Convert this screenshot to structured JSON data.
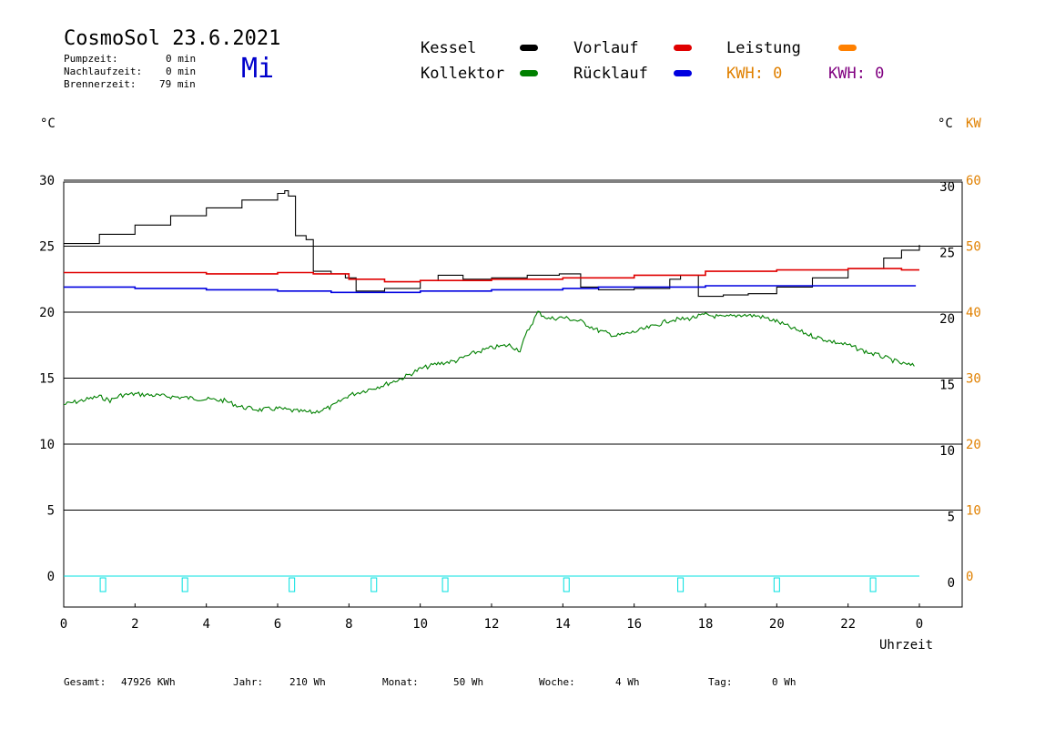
{
  "header": {
    "title": "CosmoSol 23.6.2021",
    "day": "Mi",
    "stats": [
      {
        "label": "Pumpzeit:",
        "value": "0 min"
      },
      {
        "label": "Nachlaufzeit:",
        "value": "0 min"
      },
      {
        "label": "Brennerzeit:",
        "value": "79 min"
      }
    ]
  },
  "legend": {
    "kessel": "Kessel",
    "kollektor": "Kollektor",
    "vorlauf": "Vorlauf",
    "ruecklauf": "Rücklauf",
    "leistung": "Leistung",
    "kwh1": "KWH: 0",
    "kwh2": "KWH: 0"
  },
  "units": {
    "left": "°C",
    "right_c": "°C",
    "right_kw": "KW",
    "xlabel": "Uhrzeit"
  },
  "footer": {
    "gesamt_label": "Gesamt:",
    "gesamt_value": "47926 KWh",
    "jahr_label": "Jahr:",
    "jahr_value": "210 Wh",
    "monat_label": "Monat:",
    "monat_value": "50 Wh",
    "woche_label": "Woche:",
    "woche_value": "4 Wh",
    "tag_label": "Tag:",
    "tag_value": "0 Wh"
  },
  "colors": {
    "kessel": "#000000",
    "kollektor": "#008000",
    "vorlauf": "#e00000",
    "ruecklauf": "#0000e0",
    "leistung": "#ff8000",
    "kwh1": "#e08000",
    "kwh2": "#800080",
    "pump": "#00e0e0",
    "kw_axis": "#e08000"
  },
  "chart_data": {
    "type": "line",
    "xlabel": "Uhrzeit",
    "ylabel": "°C",
    "xlim": [
      0,
      24
    ],
    "ylim": [
      -2,
      31
    ],
    "y2lim": [
      -4,
      62
    ],
    "x_tick_labels": [
      "0",
      "2",
      "4",
      "6",
      "8",
      "10",
      "12",
      "14",
      "16",
      "18",
      "20",
      "22",
      "0"
    ],
    "y_ticks_left": [
      0,
      5,
      10,
      15,
      20,
      25,
      30
    ],
    "y_ticks_right": [
      0,
      5,
      10,
      15,
      20,
      25,
      30
    ],
    "y2_ticks_right": [
      0,
      10,
      20,
      30,
      40,
      50,
      60
    ],
    "grid": true,
    "series": [
      {
        "name": "Kessel",
        "color_key": "kessel",
        "x": [
          0,
          1,
          2,
          3,
          4,
          5,
          6,
          6.2,
          6.3,
          6.5,
          6.8,
          7.0,
          7.5,
          7.9,
          8.2,
          9,
          10,
          10.5,
          11.2,
          12,
          13,
          13.9,
          14.5,
          15,
          16,
          17,
          17.3,
          17.8,
          18.5,
          19.2,
          20,
          21,
          22,
          23,
          23.5,
          24
        ],
        "y": [
          25.2,
          25.9,
          26.6,
          27.3,
          27.9,
          28.5,
          29.0,
          29.2,
          28.8,
          25.8,
          25.5,
          23.1,
          22.9,
          22.6,
          21.6,
          21.8,
          22.4,
          22.8,
          22.5,
          22.6,
          22.8,
          22.9,
          21.9,
          21.7,
          21.8,
          22.5,
          22.8,
          21.2,
          21.3,
          21.4,
          21.9,
          22.6,
          23.3,
          24.1,
          24.7,
          25.1
        ]
      },
      {
        "name": "Vorlauf",
        "color_key": "vorlauf",
        "x": [
          0,
          2,
          4,
          6,
          7,
          8,
          9,
          10,
          12,
          14,
          16,
          18,
          20,
          22,
          23.5,
          24
        ],
        "y": [
          23.0,
          23.0,
          22.9,
          23.0,
          22.9,
          22.5,
          22.3,
          22.4,
          22.5,
          22.6,
          22.8,
          23.1,
          23.2,
          23.3,
          23.2,
          23.2
        ],
        "end_x": 23.9
      },
      {
        "name": "Rücklauf",
        "color_key": "ruecklauf",
        "x": [
          0,
          2,
          4,
          6,
          7.5,
          8.5,
          10,
          12,
          14,
          15,
          16,
          18,
          20,
          22,
          23.9
        ],
        "y": [
          21.9,
          21.8,
          21.7,
          21.6,
          21.5,
          21.5,
          21.6,
          21.7,
          21.8,
          21.9,
          21.9,
          22.0,
          22.0,
          22.0,
          22.0
        ]
      },
      {
        "name": "Kollektor",
        "color_key": "kollektor",
        "x": [
          0,
          0.5,
          1,
          1.3,
          1.6,
          2,
          2.5,
          3,
          3.5,
          4,
          4.5,
          5,
          5.5,
          6,
          6.5,
          7,
          7.5,
          8,
          8.5,
          9,
          9.5,
          10,
          10.5,
          11,
          11.5,
          12,
          12.5,
          12.8,
          13,
          13.3,
          13.6,
          14,
          14.5,
          15,
          15.5,
          16,
          16.5,
          17,
          17.5,
          18,
          18.5,
          19,
          19.5,
          20,
          20.5,
          21,
          21.5,
          22,
          22.5,
          23,
          23.5,
          23.9
        ],
        "y": [
          13.0,
          13.3,
          13.6,
          13.3,
          13.7,
          13.8,
          13.7,
          13.6,
          13.5,
          13.4,
          13.3,
          12.8,
          12.6,
          12.7,
          12.5,
          12.4,
          12.8,
          13.7,
          14.1,
          14.5,
          15.0,
          15.7,
          16.1,
          16.3,
          16.9,
          17.3,
          17.5,
          17.1,
          18.5,
          20.0,
          19.5,
          19.6,
          19.3,
          18.6,
          18.2,
          18.5,
          18.9,
          19.4,
          19.5,
          19.8,
          19.6,
          19.8,
          19.7,
          19.3,
          18.7,
          18.2,
          17.8,
          17.5,
          17.0,
          16.6,
          16.1,
          15.9
        ]
      },
      {
        "name": "Leistung",
        "color_key": "leistung",
        "x": [
          0,
          24
        ],
        "y": [
          0,
          0
        ]
      }
    ],
    "pump_events": [
      1.1,
      3.4,
      6.4,
      8.7,
      10.7,
      14.1,
      17.3,
      20.0,
      22.7
    ],
    "pump_baseline": 0
  }
}
